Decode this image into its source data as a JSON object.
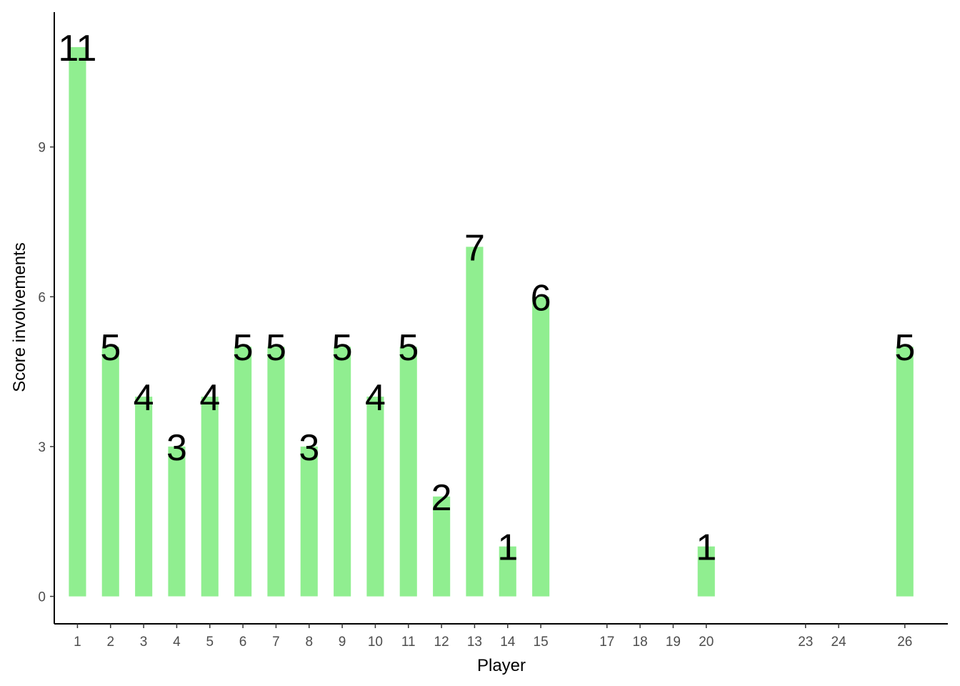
{
  "chart_data": {
    "type": "bar",
    "xlabel": "Player",
    "ylabel": "Score involvements",
    "x_ticks": [
      1,
      2,
      3,
      4,
      5,
      6,
      7,
      8,
      9,
      10,
      11,
      12,
      13,
      14,
      15,
      17,
      18,
      19,
      20,
      23,
      24,
      26
    ],
    "y_ticks": [
      0,
      3,
      6,
      9
    ],
    "xlim": [
      0.3,
      27.3
    ],
    "ylim": [
      -0.55,
      11.7
    ],
    "bar_color": "#90EE90",
    "grid": false,
    "legend": "none",
    "bars": [
      {
        "player": 1,
        "value": 11
      },
      {
        "player": 2,
        "value": 5
      },
      {
        "player": 3,
        "value": 4
      },
      {
        "player": 4,
        "value": 3
      },
      {
        "player": 5,
        "value": 4
      },
      {
        "player": 6,
        "value": 5
      },
      {
        "player": 7,
        "value": 5
      },
      {
        "player": 8,
        "value": 3
      },
      {
        "player": 9,
        "value": 5
      },
      {
        "player": 10,
        "value": 4
      },
      {
        "player": 11,
        "value": 5
      },
      {
        "player": 12,
        "value": 2
      },
      {
        "player": 13,
        "value": 7
      },
      {
        "player": 14,
        "value": 1
      },
      {
        "player": 15,
        "value": 6
      },
      {
        "player": 20,
        "value": 1
      },
      {
        "player": 26,
        "value": 5
      }
    ]
  }
}
